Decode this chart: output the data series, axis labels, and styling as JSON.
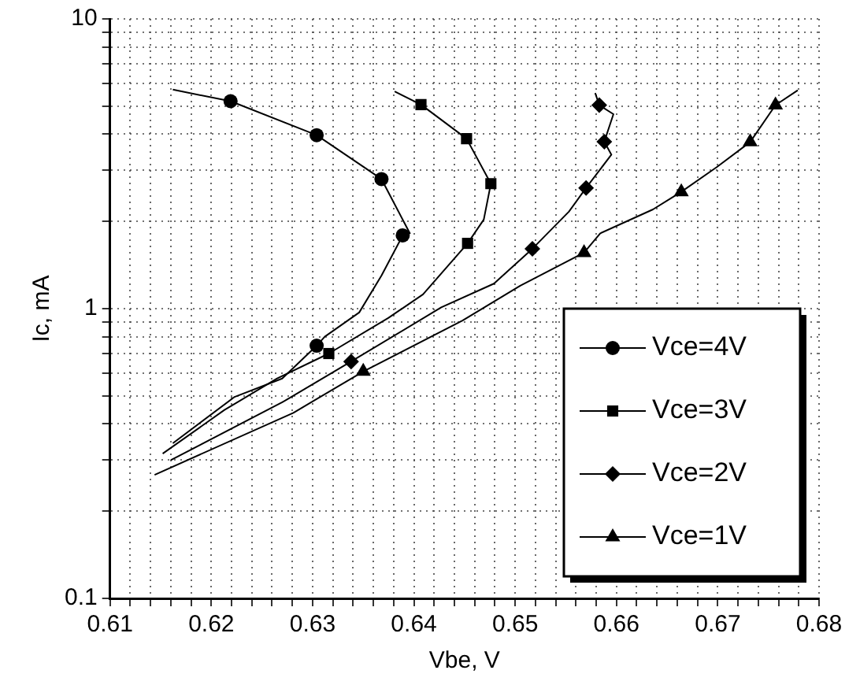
{
  "chart_data": {
    "type": "line",
    "xlabel": "Vbe, V",
    "ylabel": "Ic, mA",
    "log": "y",
    "grid": true,
    "legend": "bottom right",
    "line_style": "solid",
    "xlim": [
      0.61,
      0.68
    ],
    "xticks": [
      0.61,
      {
        "value": 0.612,
        "label": null
      },
      {
        "value": 0.614,
        "label": null
      },
      {
        "value": 0.616,
        "label": null
      },
      {
        "value": 0.618,
        "label": null
      },
      0.62,
      {
        "value": 0.622,
        "label": null
      },
      {
        "value": 0.624,
        "label": null
      },
      {
        "value": 0.626,
        "label": null
      },
      {
        "value": 0.628,
        "label": null
      },
      0.63,
      {
        "value": 0.632,
        "label": null
      },
      {
        "value": 0.634,
        "label": null
      },
      {
        "value": 0.636,
        "label": null
      },
      {
        "value": 0.638,
        "label": null
      },
      0.64,
      {
        "value": 0.642,
        "label": null
      },
      {
        "value": 0.644,
        "label": null
      },
      {
        "value": 0.646,
        "label": null
      },
      {
        "value": 0.648,
        "label": null
      },
      0.65,
      {
        "value": 0.652,
        "label": null
      },
      {
        "value": 0.654,
        "label": null
      },
      {
        "value": 0.656,
        "label": null
      },
      {
        "value": 0.658,
        "label": null
      },
      0.66,
      {
        "value": 0.662,
        "label": null
      },
      {
        "value": 0.664,
        "label": null
      },
      {
        "value": 0.666,
        "label": null
      },
      {
        "value": 0.668,
        "label": null
      },
      0.67,
      {
        "value": 0.672,
        "label": null
      },
      {
        "value": 0.674,
        "label": null
      },
      {
        "value": 0.676,
        "label": null
      },
      {
        "value": 0.678,
        "label": null
      },
      0.68
    ],
    "ylim": [
      0.1,
      10
    ],
    "yticks": [
      0.1,
      {
        "value": 0.2,
        "label": null
      },
      {
        "value": 0.3,
        "label": null
      },
      {
        "value": 0.4,
        "label": null
      },
      {
        "value": 0.5,
        "label": null
      },
      {
        "value": 0.6,
        "label": null
      },
      {
        "value": 0.7,
        "label": null
      },
      {
        "value": 0.8,
        "label": null
      },
      {
        "value": 0.9,
        "label": null
      },
      1,
      {
        "value": 2,
        "label": null
      },
      {
        "value": 3,
        "label": null
      },
      {
        "value": 4,
        "label": null
      },
      {
        "value": 5,
        "label": null
      },
      {
        "value": 6,
        "label": null
      },
      {
        "value": 7,
        "label": null
      },
      {
        "value": 8,
        "label": null
      },
      {
        "value": 9,
        "label": null
      },
      10
    ],
    "series": [
      {
        "type": "line",
        "marker": "none",
        "color": "#000000",
        "x": [
          0.6162,
          0.6219,
          0.6304,
          0.6368,
          0.6396,
          0.6389,
          0.6368,
          0.6346,
          0.6312,
          0.6304,
          0.627,
          0.6223,
          0.6162
        ],
        "values": [
          5.7,
          5.2,
          3.97,
          2.8,
          1.82,
          1.79,
          1.3,
          0.97,
          0.8,
          0.745,
          0.574,
          0.496,
          0.343
        ]
      },
      {
        "type": "line",
        "marker": "none",
        "color": "#000000",
        "x": [
          0.6381,
          0.6407,
          0.6452,
          0.6476,
          0.6469,
          0.6453,
          0.6409,
          0.6375,
          0.6316,
          0.6265,
          0.6213,
          0.6152
        ],
        "values": [
          5.62,
          5.06,
          3.86,
          2.7,
          2.03,
          1.68,
          1.12,
          0.93,
          0.7,
          0.574,
          0.447,
          0.316
        ]
      },
      {
        "type": "line",
        "marker": "none",
        "color": "#000000",
        "x": [
          0.6579,
          0.6583,
          0.6597,
          0.6588,
          0.6595,
          0.657,
          0.6553,
          0.6517,
          0.6479,
          0.6427,
          0.6338,
          0.627,
          0.616
        ],
        "values": [
          5.55,
          5.04,
          4.69,
          3.77,
          3.4,
          2.61,
          2.16,
          1.61,
          1.22,
          1.01,
          0.657,
          0.475,
          0.3
        ]
      },
      {
        "type": "line",
        "marker": "none",
        "color": "#000000",
        "x": [
          0.6779,
          0.6757,
          0.6732,
          0.6699,
          0.6664,
          0.6636,
          0.6584,
          0.6568,
          0.6505,
          0.6448,
          0.635,
          0.6281,
          0.6144
        ],
        "values": [
          5.67,
          5.04,
          3.76,
          3.08,
          2.53,
          2.2,
          1.82,
          1.56,
          1.2,
          0.91,
          0.607,
          0.437,
          0.267
        ]
      },
      {
        "type": "scatter",
        "name": "Vce=4V",
        "marker": "circle",
        "color": "#000000",
        "x": [
          0.6219,
          0.6304,
          0.6368,
          0.6389,
          0.6304
        ],
        "values": [
          5.2,
          3.97,
          2.8,
          1.79,
          0.745
        ]
      },
      {
        "type": "scatter",
        "name": "Vce=3V",
        "marker": "square",
        "color": "#000000",
        "x": [
          0.6407,
          0.6452,
          0.6476,
          0.6453,
          0.6316
        ],
        "values": [
          5.06,
          3.86,
          2.7,
          1.68,
          0.7
        ]
      },
      {
        "type": "scatter",
        "name": "Vce=2V",
        "marker": "diamond",
        "color": "#000000",
        "x": [
          0.6583,
          0.6588,
          0.657,
          0.6517,
          0.6338
        ],
        "values": [
          5.04,
          3.77,
          2.61,
          1.61,
          0.657
        ]
      },
      {
        "type": "scatter",
        "name": "Vce=1V",
        "marker": "triangle",
        "color": "#000000",
        "x": [
          0.6757,
          0.6732,
          0.6664,
          0.6568,
          0.635
        ],
        "values": [
          5.04,
          3.76,
          2.53,
          1.56,
          0.607
        ]
      }
    ]
  }
}
